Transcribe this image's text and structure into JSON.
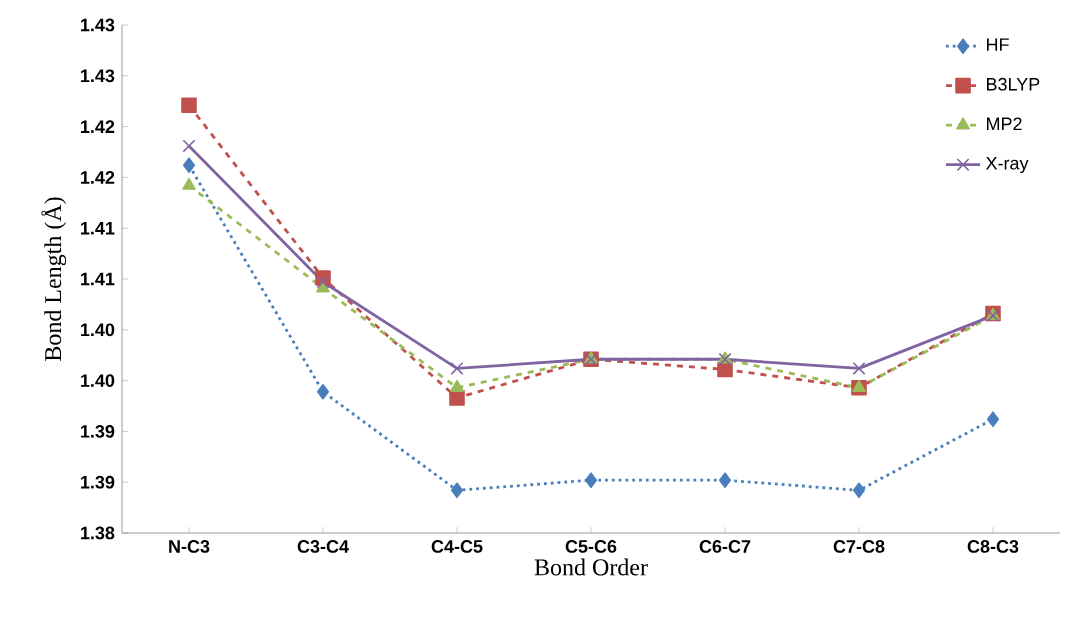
{
  "chart_data": {
    "type": "line",
    "xlabel": "Bond Order",
    "ylabel": "Bond Length (Å)",
    "categories": [
      "N-C3",
      "C3-C4",
      "C4-C5",
      "C5-C6",
      "C6-C7",
      "C7-C8",
      "C8-C3"
    ],
    "ylim": [
      1.38,
      1.43
    ],
    "yticks": [
      {
        "value": 1.38,
        "label": "1.38"
      },
      {
        "value": 1.385,
        "label": "1.39"
      },
      {
        "value": 1.39,
        "label": "1.39"
      },
      {
        "value": 1.395,
        "label": "1.40"
      },
      {
        "value": 1.4,
        "label": "1.40"
      },
      {
        "value": 1.405,
        "label": "1.41"
      },
      {
        "value": 1.41,
        "label": "1.41"
      },
      {
        "value": 1.415,
        "label": "1.42"
      },
      {
        "value": 1.42,
        "label": "1.42"
      },
      {
        "value": 1.425,
        "label": "1.43"
      },
      {
        "value": 1.43,
        "label": "1.43"
      }
    ],
    "series": [
      {
        "name": "HF",
        "color": "#4a7ebb",
        "marker": "diamond",
        "line_style": "dotted",
        "values": [
          1.4162,
          1.3939,
          1.3842,
          1.3852,
          1.3852,
          1.3842,
          1.3912
        ]
      },
      {
        "name": "B3LYP",
        "color": "#c0504d",
        "marker": "square",
        "line_style": "dashed",
        "values": [
          1.4221,
          1.4051,
          1.3933,
          1.3971,
          1.3961,
          1.3943,
          1.4016
        ]
      },
      {
        "name": "MP2",
        "color": "#9bbb59",
        "marker": "triangle",
        "line_style": "dashed",
        "values": [
          1.4142,
          1.4041,
          1.3943,
          1.3971,
          1.3971,
          1.3943,
          1.4014
        ]
      },
      {
        "name": "X-ray",
        "color": "#8064a2",
        "marker": "cross",
        "line_style": "solid",
        "values": [
          1.4181,
          1.4047,
          1.3962,
          1.3971,
          1.3971,
          1.3962,
          1.4014
        ]
      }
    ],
    "grid": false,
    "legend": "top right"
  }
}
